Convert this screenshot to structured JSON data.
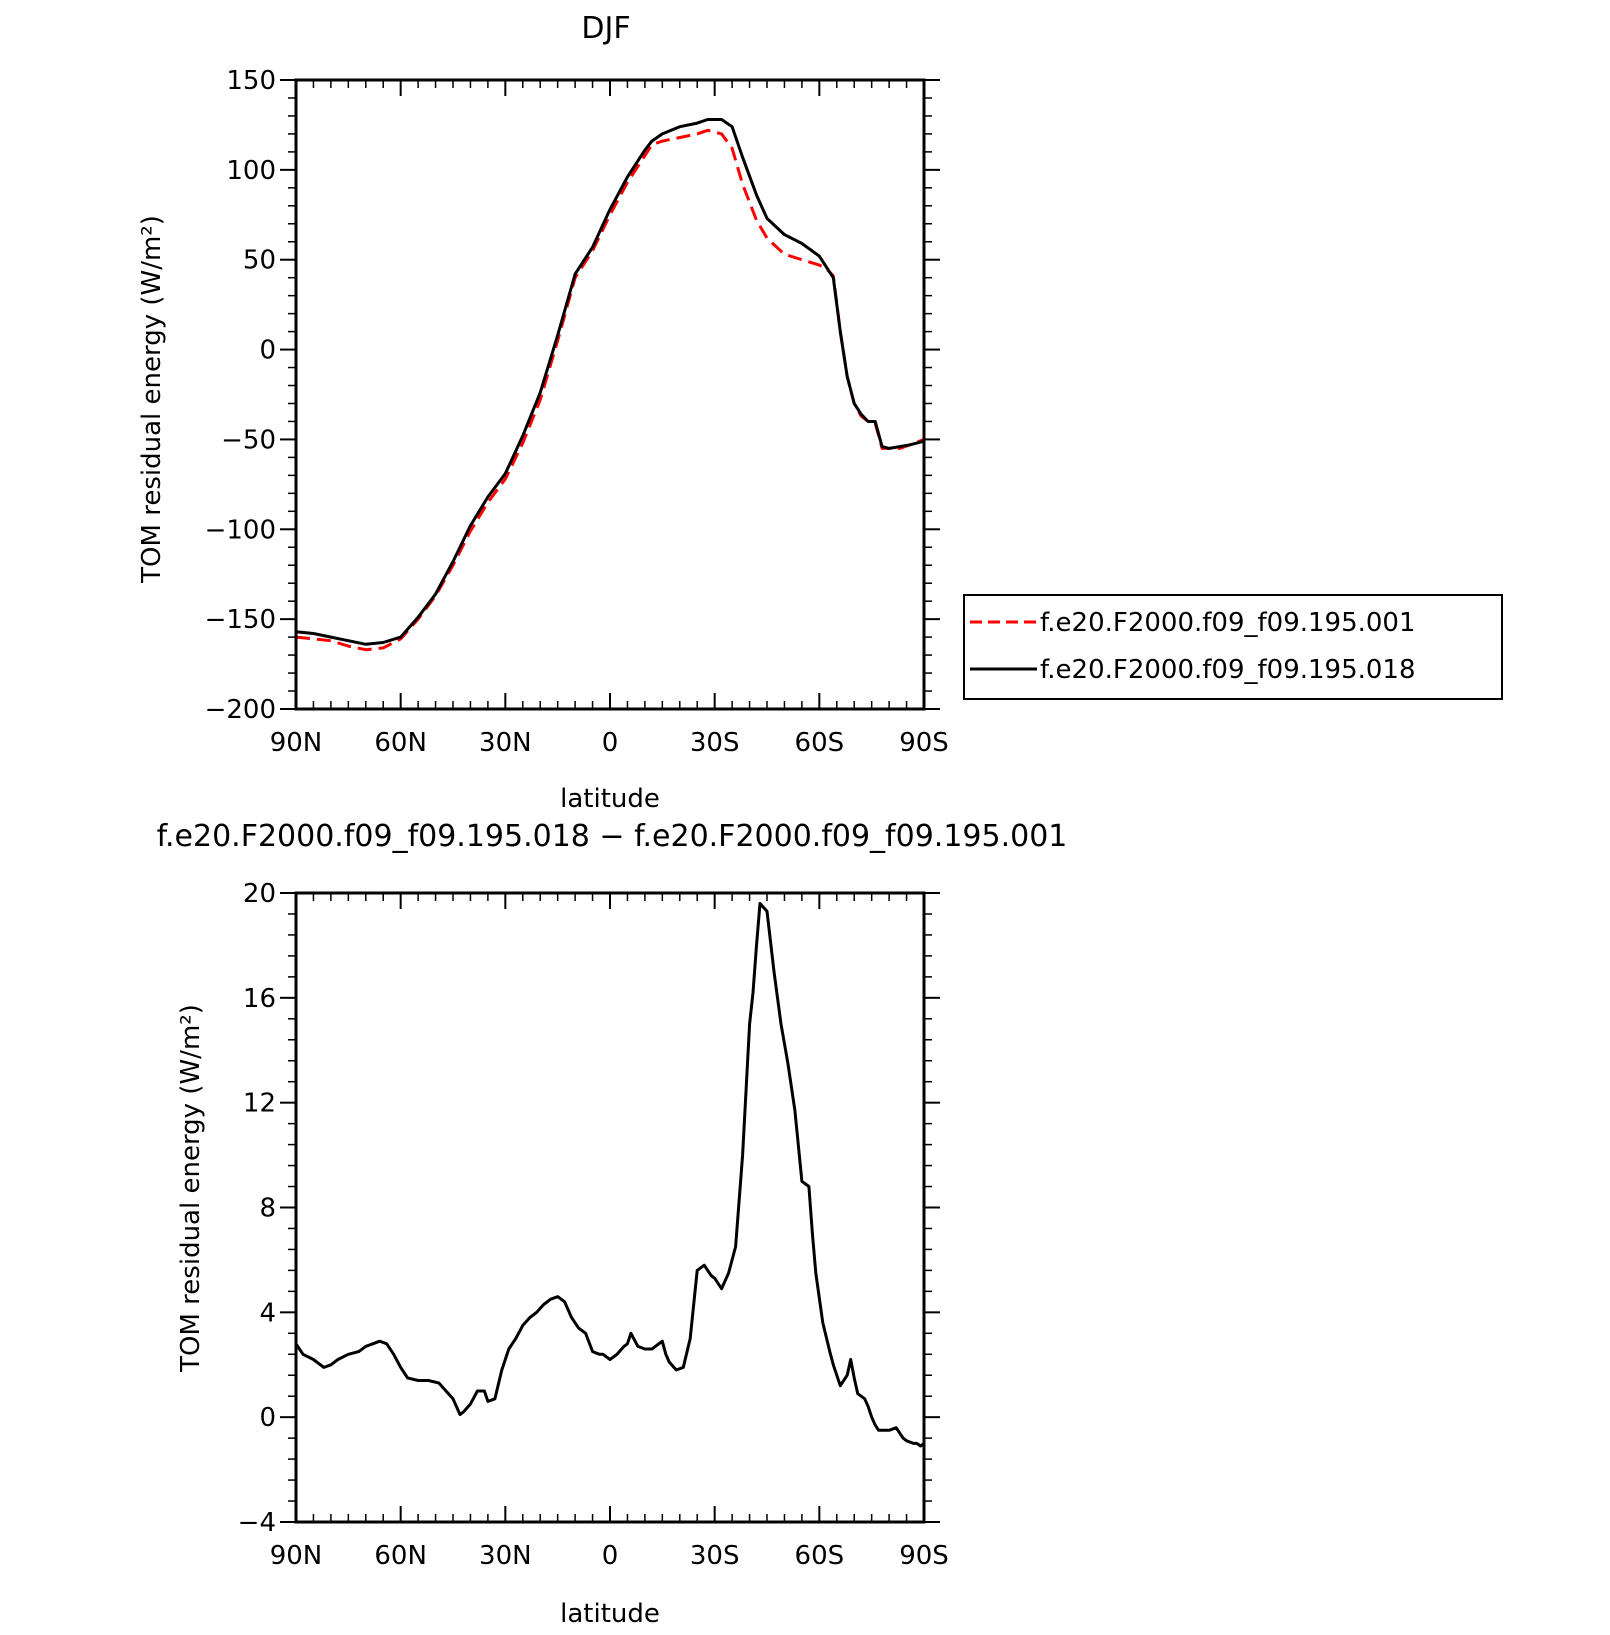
{
  "chart_data": [
    {
      "type": "line",
      "title": "DJF",
      "xlabel": "latitude",
      "ylabel": "TOM residual energy (W/m²)",
      "xlim": [
        90,
        -90
      ],
      "ylim": [
        -200,
        150
      ],
      "x_ticks": [
        90,
        60,
        30,
        0,
        -30,
        -60,
        -90
      ],
      "x_tick_labels": [
        "90N",
        "60N",
        "30N",
        "0",
        "30S",
        "60S",
        "90S"
      ],
      "y_ticks": [
        150,
        100,
        50,
        0,
        -50,
        -100,
        -150,
        -200
      ],
      "y_tick_labels": [
        "150",
        "100",
        "50",
        "0",
        "−50",
        "−100",
        "−150",
        "−200"
      ],
      "grid": false,
      "legend_position": "right",
      "series": [
        {
          "name": "f.e20.F2000.f09_f09.195.001",
          "color": "#ff0000",
          "dash": "dashed",
          "x": [
            90,
            85,
            80,
            75,
            70,
            65,
            60,
            55,
            50,
            45,
            40,
            35,
            30,
            25,
            20,
            15,
            10,
            5,
            0,
            -5,
            -10,
            -12,
            -15,
            -20,
            -25,
            -28,
            -32,
            -35,
            -38,
            -42,
            -45,
            -50,
            -55,
            -60,
            -62,
            -64,
            -66,
            -68,
            -70,
            -72,
            -74,
            -76,
            -78,
            -80,
            -83,
            -86,
            -90
          ],
          "y": [
            -160,
            -161,
            -162,
            -165,
            -167,
            -166,
            -161,
            -150,
            -137,
            -120,
            -101,
            -85,
            -72,
            -52,
            -28,
            5,
            40,
            55,
            75,
            93,
            108,
            114,
            116,
            118,
            120,
            122,
            120,
            112,
            92,
            72,
            62,
            53,
            50,
            47,
            45,
            41,
            10,
            -15,
            -30,
            -37,
            -40,
            -41,
            -55,
            -55,
            -55,
            -53,
            -50
          ]
        },
        {
          "name": "f.e20.F2000.f09_f09.195.018",
          "color": "#000000",
          "dash": "solid",
          "x": [
            90,
            85,
            80,
            75,
            70,
            65,
            60,
            55,
            50,
            45,
            40,
            35,
            30,
            25,
            20,
            15,
            10,
            5,
            0,
            -5,
            -10,
            -12,
            -15,
            -20,
            -25,
            -28,
            -32,
            -35,
            -38,
            -42,
            -45,
            -50,
            -55,
            -60,
            -62,
            -64,
            -66,
            -68,
            -70,
            -72,
            -74,
            -76,
            -78,
            -80,
            -83,
            -86,
            -90
          ],
          "y": [
            -157,
            -158,
            -160,
            -162,
            -164,
            -163,
            -160,
            -149,
            -136,
            -118,
            -98,
            -82,
            -69,
            -48,
            -24,
            8,
            42,
            57,
            78,
            96,
            111,
            116,
            120,
            124,
            126,
            128,
            128,
            124,
            107,
            86,
            73,
            64,
            59,
            52,
            46,
            40,
            10,
            -15,
            -30,
            -36,
            -40,
            -40,
            -54,
            -55,
            -54,
            -53,
            -51
          ]
        }
      ]
    },
    {
      "type": "line",
      "title": "f.e20.F2000.f09_f09.195.018 − f.e20.F2000.f09_f09.195.001",
      "xlabel": "latitude",
      "ylabel": "TOM residual energy (W/m²)",
      "xlim": [
        90,
        -90
      ],
      "ylim": [
        -4,
        20
      ],
      "x_ticks": [
        90,
        60,
        30,
        0,
        -30,
        -60,
        -90
      ],
      "x_tick_labels": [
        "90N",
        "60N",
        "30N",
        "0",
        "30S",
        "60S",
        "90S"
      ],
      "y_ticks": [
        20,
        16,
        12,
        8,
        4,
        0,
        -4
      ],
      "y_tick_labels": [
        "20",
        "16",
        "12",
        "8",
        "4",
        "0",
        "−4"
      ],
      "grid": false,
      "series": [
        {
          "color": "#000000",
          "dash": "solid",
          "x": [
            90,
            88,
            85,
            82,
            80,
            78,
            75,
            72,
            70,
            68,
            66,
            64,
            62,
            60,
            58,
            55,
            52,
            49,
            47,
            45,
            43,
            42,
            40,
            38,
            36,
            35,
            33,
            31,
            29,
            27,
            25,
            23,
            22,
            21,
            19,
            17,
            15,
            13,
            11,
            9,
            7,
            5,
            3,
            2,
            0,
            -2,
            -4,
            -5,
            -6,
            -8,
            -10,
            -12,
            -14,
            -15,
            -16,
            -17,
            -19,
            -21,
            -23,
            -25,
            -27,
            -29,
            -30,
            -32,
            -34,
            -36,
            -38,
            -40,
            -41,
            -42,
            -43,
            -45,
            -47,
            -49,
            -51,
            -53,
            -55,
            -57,
            -58,
            -59,
            -61,
            -63,
            -64,
            -66,
            -68,
            -69,
            -70,
            -71,
            -73,
            -74,
            -75,
            -76,
            -77,
            -78,
            -80,
            -82,
            -83,
            -84,
            -85,
            -87,
            -88,
            -89,
            -90
          ],
          "y": [
            2.8,
            2.4,
            2.2,
            1.9,
            2.0,
            2.2,
            2.4,
            2.5,
            2.7,
            2.8,
            2.9,
            2.8,
            2.4,
            1.9,
            1.5,
            1.4,
            1.4,
            1.3,
            1.0,
            0.7,
            0.1,
            0.2,
            0.5,
            1.0,
            1.0,
            0.6,
            0.7,
            1.8,
            2.6,
            3.0,
            3.5,
            3.8,
            3.9,
            4.0,
            4.3,
            4.5,
            4.6,
            4.4,
            3.8,
            3.4,
            3.2,
            2.5,
            2.4,
            2.4,
            2.2,
            2.4,
            2.7,
            2.8,
            3.2,
            2.7,
            2.6,
            2.6,
            2.8,
            2.9,
            2.4,
            2.1,
            1.8,
            1.9,
            3.0,
            5.6,
            5.8,
            5.4,
            5.3,
            4.9,
            5.5,
            6.5,
            10.0,
            15.0,
            16.2,
            18.0,
            19.6,
            19.3,
            17.0,
            15.0,
            13.5,
            11.7,
            9.0,
            8.8,
            7.0,
            5.5,
            3.6,
            2.5,
            2.0,
            1.2,
            1.6,
            2.2,
            1.5,
            0.9,
            0.7,
            0.4,
            0.0,
            -0.3,
            -0.5,
            -0.5,
            -0.5,
            -0.4,
            -0.6,
            -0.8,
            -0.9,
            -1.0,
            -1.0,
            -1.1,
            -1.0
          ]
        }
      ]
    }
  ]
}
